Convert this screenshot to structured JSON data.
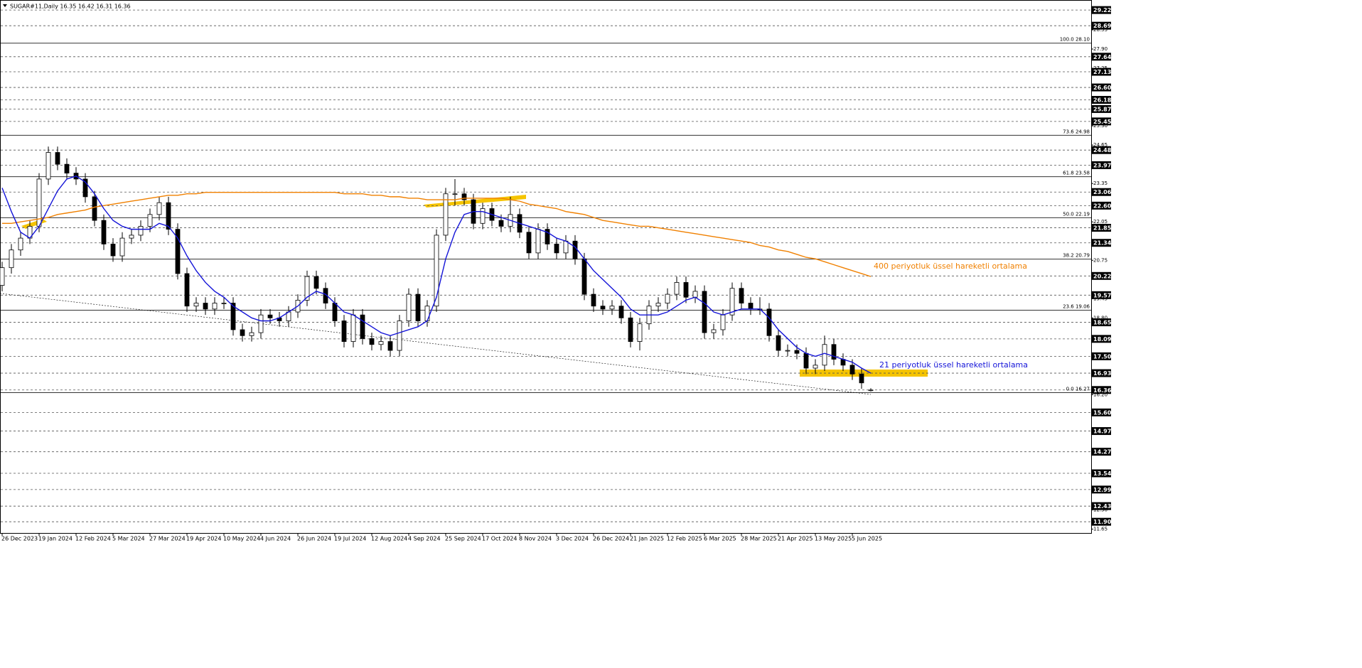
{
  "chart_data": {
    "type": "candlestick",
    "title": "SUGAR#11,Daily  16.35 16.42 16.31 16.36",
    "ylim": [
      11.52,
      29.56
    ],
    "yticks": [
      28.55,
      {
        "value": 27.9,
        "label": "27.90"
      },
      27.25,
      {
        "value": 25.3,
        "label": "25.30"
      },
      24.65,
      23.35,
      22.05,
      20.75,
      19.45,
      {
        "value": 18.8,
        "label": "18.80"
      },
      16.85,
      {
        "value": 16.2,
        "label": "16.20"
      },
      {
        "value": 14.9,
        "label": "14.90"
      },
      {
        "value": 12.3,
        "label": "12.30"
      },
      11.65
    ],
    "levels": [
      29.22,
      28.69,
      27.64,
      27.13,
      {
        "value": 26.6,
        "label": "26.60"
      },
      26.18,
      25.87,
      25.45,
      24.48,
      23.97,
      23.06,
      {
        "value": 22.6,
        "label": "22.60"
      },
      21.85,
      21.34,
      20.22,
      19.57,
      18.65,
      18.09,
      {
        "value": 17.5,
        "label": "17.50"
      },
      16.93,
      16.36,
      {
        "value": 15.6,
        "label": "15.60"
      },
      14.97,
      14.27,
      13.54,
      12.99,
      12.43,
      {
        "value": 11.9,
        "label": "11.90"
      }
    ],
    "fibonacci": [
      {
        "value": 28.1,
        "label": "100.0 28.10"
      },
      {
        "value": 24.98,
        "label": "73.6 24.98"
      },
      {
        "value": 23.58,
        "label": "61.8 23.58"
      },
      {
        "value": 22.19,
        "label": "50.0 22.19"
      },
      {
        "value": 20.79,
        "label": "38.2 20.79"
      },
      {
        "value": 19.06,
        "label": "23.6 19.06"
      },
      {
        "value": 16.27,
        "label": "0.0 16.27"
      }
    ],
    "xticks": [
      {
        "value": 0,
        "label": "26 Dec 2023"
      },
      {
        "value": 4,
        "label": "19 Jan 2024"
      },
      {
        "value": 8,
        "label": "12 Feb 2024"
      },
      {
        "value": 12,
        "label": "5 Mar 2024"
      },
      {
        "value": 16,
        "label": "27 Mar 2024"
      },
      {
        "value": 20,
        "label": "19 Apr 2024"
      },
      {
        "value": 24,
        "label": "10 May 2024"
      },
      {
        "value": 28,
        "label": "4 Jun 2024"
      },
      {
        "value": 32,
        "label": "26 Jun 2024"
      },
      {
        "value": 36,
        "label": "19 Jul 2024"
      },
      {
        "value": 40,
        "label": "12 Aug 2024"
      },
      {
        "value": 44,
        "label": "4 Sep 2024"
      },
      {
        "value": 48,
        "label": "25 Sep 2024"
      },
      {
        "value": 52,
        "label": "17 Oct 2024"
      },
      {
        "value": 56,
        "label": "8 Nov 2024"
      },
      {
        "value": 60,
        "label": "3 Dec 2024"
      },
      {
        "value": 64,
        "label": "26 Dec 2024"
      },
      {
        "value": 68,
        "label": "21 Jan 2025"
      },
      {
        "value": 72,
        "label": "12 Feb 2025"
      },
      {
        "value": 76,
        "label": "6 Mar 2025"
      },
      {
        "value": 80,
        "label": "28 Mar 2025"
      },
      {
        "value": 84,
        "label": "21 Apr 2025"
      },
      {
        "value": 88,
        "label": "13 May 2025"
      },
      {
        "value": 92,
        "label": "5 Jun 2025"
      }
    ],
    "open": [
      19.9,
      20.5,
      21.1,
      21.5,
      21.9,
      23.5,
      24.4,
      24.0,
      23.7,
      23.5,
      22.9,
      22.1,
      21.3,
      20.9,
      21.5,
      21.6,
      21.9,
      22.3,
      22.7,
      21.8,
      20.3,
      19.2,
      19.3,
      19.1,
      19.3,
      19.3,
      18.4,
      18.2,
      18.3,
      18.9,
      18.8,
      18.7,
      19.0,
      19.4,
      20.2,
      19.8,
      19.3,
      18.7,
      18.0,
      18.9,
      18.1,
      17.9,
      18.0,
      17.7,
      18.7,
      19.6,
      18.7,
      19.2,
      21.6,
      23.0,
      23.0,
      22.8,
      22.0,
      22.5,
      22.1,
      21.9,
      22.3,
      21.7,
      21.0,
      21.8,
      21.3,
      21.0,
      21.4,
      20.8,
      19.6,
      19.2,
      19.1,
      19.2,
      18.8,
      18.0,
      18.6,
      19.2,
      19.3,
      19.6,
      20.0,
      19.5,
      19.7,
      18.3,
      18.4,
      18.9,
      19.8,
      19.3,
      19.1,
      19.1,
      18.2,
      17.7,
      17.7,
      17.6,
      17.1,
      17.2,
      17.9,
      17.4,
      17.2,
      16.9,
      16.35
    ],
    "high": [
      20.7,
      21.3,
      21.7,
      22.1,
      23.7,
      24.6,
      24.6,
      24.2,
      23.9,
      23.7,
      23.1,
      22.3,
      21.5,
      21.7,
      21.8,
      22.1,
      22.5,
      22.9,
      22.9,
      22.0,
      20.5,
      19.5,
      19.5,
      19.5,
      19.5,
      19.5,
      18.6,
      18.5,
      19.1,
      19.1,
      19.0,
      19.2,
      19.6,
      20.4,
      20.4,
      20.0,
      19.5,
      18.9,
      19.1,
      19.1,
      18.3,
      18.2,
      18.2,
      18.9,
      19.8,
      19.8,
      19.4,
      21.8,
      23.2,
      23.5,
      23.2,
      23.0,
      22.7,
      22.7,
      22.3,
      22.9,
      22.5,
      21.9,
      22.0,
      22.0,
      21.5,
      21.6,
      21.6,
      21.0,
      19.8,
      19.4,
      19.4,
      19.4,
      19.0,
      18.8,
      19.4,
      19.5,
      19.8,
      20.2,
      20.2,
      19.9,
      19.9,
      18.6,
      19.1,
      20.0,
      20.0,
      19.5,
      19.5,
      19.3,
      18.4,
      17.9,
      17.9,
      17.8,
      17.4,
      18.2,
      18.1,
      17.6,
      17.4,
      17.1,
      16.42
    ],
    "low": [
      19.7,
      20.3,
      20.9,
      21.3,
      21.7,
      23.3,
      23.8,
      23.5,
      23.3,
      22.7,
      21.9,
      21.1,
      20.7,
      20.7,
      21.3,
      21.4,
      21.7,
      22.1,
      21.6,
      20.1,
      19.0,
      19.0,
      18.9,
      18.9,
      19.1,
      18.2,
      18.0,
      18.0,
      18.1,
      18.6,
      18.5,
      18.5,
      18.8,
      19.2,
      19.6,
      19.1,
      18.5,
      17.8,
      17.8,
      17.9,
      17.7,
      17.7,
      17.5,
      17.5,
      18.5,
      18.5,
      18.5,
      19.0,
      21.4,
      22.6,
      22.6,
      21.8,
      21.8,
      21.9,
      21.7,
      21.7,
      21.5,
      20.8,
      20.8,
      21.1,
      20.8,
      20.8,
      20.6,
      19.4,
      19.0,
      18.9,
      18.9,
      18.6,
      17.8,
      17.7,
      18.4,
      19.0,
      19.1,
      19.4,
      19.3,
      19.3,
      18.1,
      18.1,
      18.2,
      18.7,
      19.1,
      18.9,
      18.9,
      18.0,
      17.5,
      17.5,
      17.4,
      16.9,
      16.9,
      17.0,
      17.2,
      17.0,
      16.7,
      16.4,
      16.31
    ],
    "close": [
      20.5,
      21.1,
      21.5,
      21.9,
      23.5,
      24.4,
      24.0,
      23.7,
      23.5,
      22.9,
      22.1,
      21.3,
      20.9,
      21.5,
      21.6,
      21.9,
      22.3,
      22.7,
      21.8,
      20.3,
      19.2,
      19.3,
      19.1,
      19.3,
      19.3,
      18.4,
      18.2,
      18.3,
      18.9,
      18.8,
      18.7,
      19.0,
      19.4,
      20.2,
      19.8,
      19.3,
      18.7,
      18.0,
      18.9,
      18.1,
      17.9,
      18.0,
      17.7,
      18.7,
      19.6,
      18.7,
      19.2,
      21.6,
      23.0,
      23.0,
      22.8,
      22.0,
      22.5,
      22.1,
      21.9,
      22.3,
      21.7,
      21.0,
      21.8,
      21.3,
      21.0,
      21.4,
      20.8,
      19.6,
      19.2,
      19.1,
      19.2,
      18.8,
      18.0,
      18.6,
      19.2,
      19.3,
      19.6,
      20.0,
      19.5,
      19.7,
      18.3,
      18.4,
      18.9,
      19.8,
      19.3,
      19.1,
      19.1,
      18.2,
      17.7,
      17.7,
      17.6,
      17.1,
      17.2,
      17.9,
      17.4,
      17.2,
      16.9,
      16.6,
      16.36
    ],
    "moving_averages": [
      {
        "label": "400 periyotluk üssel hareketli ortalama",
        "color": "#f08000",
        "values": [
          22.0,
          22.0,
          22.05,
          22.1,
          22.15,
          22.2,
          22.3,
          22.35,
          22.4,
          22.45,
          22.55,
          22.6,
          22.65,
          22.7,
          22.75,
          22.8,
          22.85,
          22.9,
          22.95,
          22.95,
          23.0,
          23.0,
          23.05,
          23.05,
          23.05,
          23.05,
          23.05,
          23.05,
          23.05,
          23.05,
          23.05,
          23.05,
          23.05,
          23.05,
          23.05,
          23.05,
          23.05,
          23.0,
          23.0,
          23.0,
          22.95,
          22.95,
          22.9,
          22.9,
          22.85,
          22.85,
          22.8,
          22.8,
          22.8,
          22.8,
          22.85,
          22.85,
          22.85,
          22.85,
          22.85,
          22.8,
          22.75,
          22.65,
          22.6,
          22.55,
          22.5,
          22.4,
          22.35,
          22.3,
          22.2,
          22.1,
          22.05,
          22.0,
          21.95,
          21.9,
          21.9,
          21.85,
          21.8,
          21.75,
          21.7,
          21.65,
          21.6,
          21.55,
          21.5,
          21.45,
          21.4,
          21.35,
          21.25,
          21.2,
          21.1,
          21.05,
          20.95,
          20.85,
          20.8,
          20.7,
          20.6,
          20.5,
          20.4,
          20.3,
          20.2
        ]
      },
      {
        "label": "21 periyotluk üssel hareketli ortalama",
        "color": "#1414d8",
        "values": [
          23.2,
          22.4,
          21.7,
          21.5,
          21.9,
          22.5,
          23.1,
          23.5,
          23.6,
          23.4,
          23.0,
          22.5,
          22.1,
          21.9,
          21.8,
          21.8,
          21.8,
          22.0,
          21.9,
          21.5,
          20.9,
          20.4,
          20.0,
          19.7,
          19.5,
          19.2,
          19.0,
          18.8,
          18.7,
          18.7,
          18.8,
          19.0,
          19.2,
          19.5,
          19.7,
          19.6,
          19.3,
          19.0,
          18.9,
          18.7,
          18.5,
          18.3,
          18.2,
          18.3,
          18.4,
          18.5,
          18.7,
          19.5,
          20.8,
          21.7,
          22.3,
          22.4,
          22.4,
          22.3,
          22.2,
          22.1,
          22.0,
          21.9,
          21.8,
          21.7,
          21.5,
          21.4,
          21.2,
          20.8,
          20.4,
          20.1,
          19.8,
          19.5,
          19.1,
          18.9,
          18.9,
          18.9,
          19.0,
          19.2,
          19.4,
          19.5,
          19.3,
          19.0,
          18.9,
          19.0,
          19.1,
          19.1,
          19.1,
          18.8,
          18.4,
          18.1,
          17.8,
          17.6,
          17.5,
          17.6,
          17.5,
          17.4,
          17.3,
          17.1,
          16.93
        ]
      }
    ],
    "trendline": [
      19.63,
      16.21
    ]
  }
}
